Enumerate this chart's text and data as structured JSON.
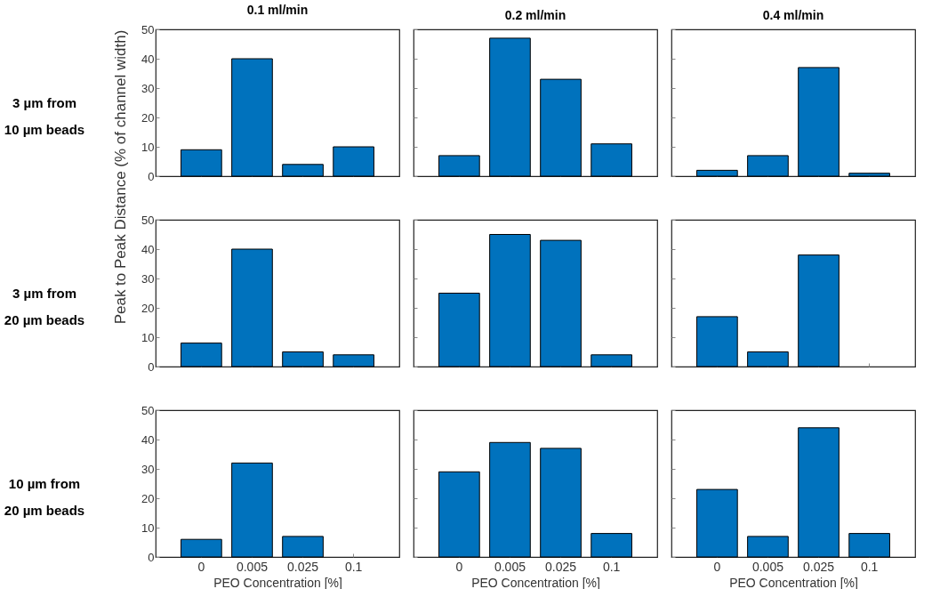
{
  "chart_data": [
    {
      "type": "bar",
      "title": "0.1 ml/min",
      "annotations": [
        "3 µm from\n10 µm beads"
      ],
      "categories": [
        "0",
        "0.005",
        "0.025",
        "0.1"
      ],
      "values": [
        9,
        40,
        4,
        10
      ],
      "color": "#0072bd",
      "ylim": [
        0,
        50
      ],
      "yticks": [
        0,
        10,
        20,
        30,
        40,
        50
      ],
      "tick_labels": "y"
    },
    {
      "type": "bar",
      "title": "0.2 ml/min",
      "categories": [
        "0",
        "0.005",
        "0.025",
        "0.1"
      ],
      "values": [
        7,
        47,
        33,
        11
      ],
      "color": "#0072bd",
      "ylim": [
        0,
        50
      ],
      "yticks": [
        0,
        10,
        20,
        30,
        40,
        50
      ],
      "tick_labels": false
    },
    {
      "type": "bar",
      "title": "0.4 ml/min",
      "categories": [
        "0",
        "0.005",
        "0.025",
        "0.1"
      ],
      "values": [
        2,
        7,
        37,
        1
      ],
      "color": "#0072bd",
      "ylim": [
        0,
        50
      ],
      "yticks": [
        0,
        10,
        20,
        30,
        40,
        50
      ],
      "tick_labels": false
    },
    {
      "type": "bar",
      "ylabel": "Peak to Peak Distance (% of channel width)",
      "annotations": [
        "3 µm from\n20 µm beads"
      ],
      "categories": [
        "0",
        "0.005",
        "0.025",
        "0.1"
      ],
      "values": [
        8,
        40,
        5,
        4
      ],
      "color": "#0072bd",
      "ylim": [
        0,
        50
      ],
      "yticks": [
        0,
        10,
        20,
        30,
        40,
        50
      ],
      "tick_labels": "y"
    },
    {
      "type": "bar",
      "categories": [
        "0",
        "0.005",
        "0.025",
        "0.1"
      ],
      "values": [
        25,
        45,
        43,
        4
      ],
      "color": "#0072bd",
      "ylim": [
        0,
        50
      ],
      "yticks": [
        0,
        10,
        20,
        30,
        40,
        50
      ],
      "tick_labels": false
    },
    {
      "type": "bar",
      "categories": [
        "0",
        "0.005",
        "0.025",
        "0.1"
      ],
      "values": [
        17,
        5,
        38,
        null
      ],
      "color": "#0072bd",
      "ylim": [
        0,
        50
      ],
      "yticks": [
        0,
        10,
        20,
        30,
        40,
        50
      ],
      "tick_labels": false
    },
    {
      "type": "bar",
      "xlabel": "PEO Concentration [%]",
      "annotations": [
        "10 µm from\n20 µm beads"
      ],
      "categories": [
        "0",
        "0.005",
        "0.025",
        "0.1"
      ],
      "values": [
        6,
        32,
        7,
        null
      ],
      "color": "#0072bd",
      "ylim": [
        0,
        50
      ],
      "yticks": [
        0,
        10,
        20,
        30,
        40,
        50
      ]
    },
    {
      "type": "bar",
      "xlabel": "PEO Concentration [%]",
      "categories": [
        "0",
        "0.005",
        "0.025",
        "0.1"
      ],
      "values": [
        29,
        39,
        37,
        8
      ],
      "color": "#0072bd",
      "ylim": [
        0,
        50
      ],
      "yticks": [
        0,
        10,
        20,
        30,
        40,
        50
      ],
      "tick_labels": "x"
    },
    {
      "type": "bar",
      "xlabel": "PEO Concentration [%]",
      "categories": [
        "0",
        "0.005",
        "0.025",
        "0.1"
      ],
      "values": [
        23,
        7,
        44,
        8
      ],
      "color": "#0072bd",
      "ylim": [
        0,
        50
      ],
      "yticks": [
        0,
        10,
        20,
        30,
        40,
        50
      ],
      "tick_labels": "x"
    }
  ]
}
